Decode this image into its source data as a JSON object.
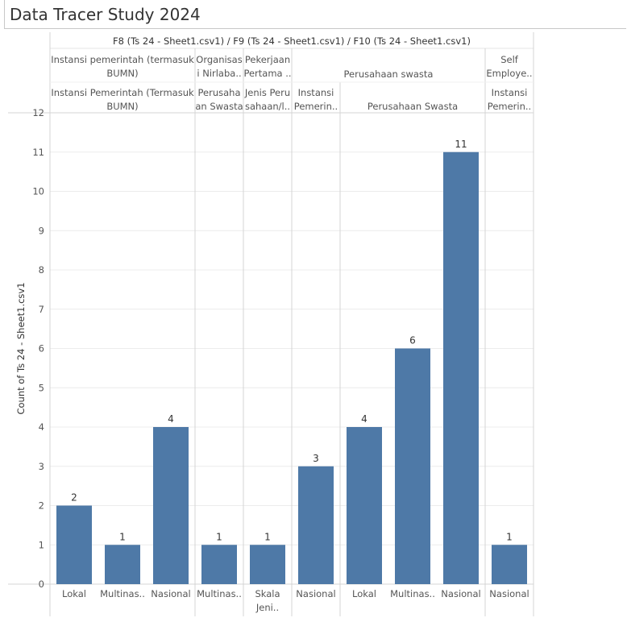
{
  "page": {
    "title": "Data Tracer Study 2024"
  },
  "chart_data": {
    "type": "bar",
    "header_title": "F8 (Ts 24 - Sheet1.csv1) / F9 (Ts 24 - Sheet1.csv1) / F10 (Ts 24 - Sheet1.csv1)",
    "ylabel": "Count of Ts 24 - Sheet1.csv1",
    "ylim": [
      0,
      12
    ],
    "yticks": [
      "0",
      "1",
      "2",
      "3",
      "4",
      "5",
      "6",
      "7",
      "8",
      "9",
      "10",
      "11",
      "12"
    ],
    "level1": [
      {
        "label_lines": [
          "Instansi pemerintah (termasuk",
          "BUMN)"
        ],
        "span": 3
      },
      {
        "label_lines": [
          "Organisas",
          "i Nirlaba.."
        ],
        "span": 1
      },
      {
        "label_lines": [
          "Pekerjaan",
          "Pertama .."
        ],
        "span": 1
      },
      {
        "label_lines": [
          "Perusahaan swasta"
        ],
        "span": 4
      },
      {
        "label_lines": [
          "Self",
          "Employe.."
        ],
        "span": 1
      }
    ],
    "level2": [
      {
        "label_lines": [
          "Instansi Pemerintah (Termasuk",
          "BUMN)"
        ],
        "span": 3
      },
      {
        "label_lines": [
          "Perusaha",
          "an Swasta"
        ],
        "span": 1
      },
      {
        "label_lines": [
          "Jenis Peru",
          "sahaan/l.."
        ],
        "span": 1
      },
      {
        "label_lines": [
          "Instansi",
          "Pemerin.."
        ],
        "span": 1
      },
      {
        "label_lines": [
          "Perusahaan Swasta"
        ],
        "span": 3
      },
      {
        "label_lines": [
          "Instansi",
          "Pemerin.."
        ],
        "span": 1
      }
    ],
    "categories": [
      "Lokal",
      "Multinas..",
      "Nasional",
      "Multinas..",
      "Skala Jeni..",
      "Nasional",
      "Lokal",
      "Multinas..",
      "Nasional",
      "Nasional"
    ],
    "category_lines": [
      [
        "Lokal"
      ],
      [
        "Multinas.."
      ],
      [
        "Nasional"
      ],
      [
        "Multinas.."
      ],
      [
        "Skala",
        "Jeni.."
      ],
      [
        "Nasional"
      ],
      [
        "Lokal"
      ],
      [
        "Multinas.."
      ],
      [
        "Nasional"
      ],
      [
        "Nasional"
      ]
    ],
    "values": [
      2,
      1,
      4,
      1,
      1,
      3,
      4,
      6,
      11,
      1
    ],
    "data_labels": [
      "2",
      "1",
      "4",
      "1",
      "1",
      "3",
      "4",
      "6",
      "11",
      "1"
    ],
    "bar_color": "#4e79a7",
    "grid": true
  }
}
